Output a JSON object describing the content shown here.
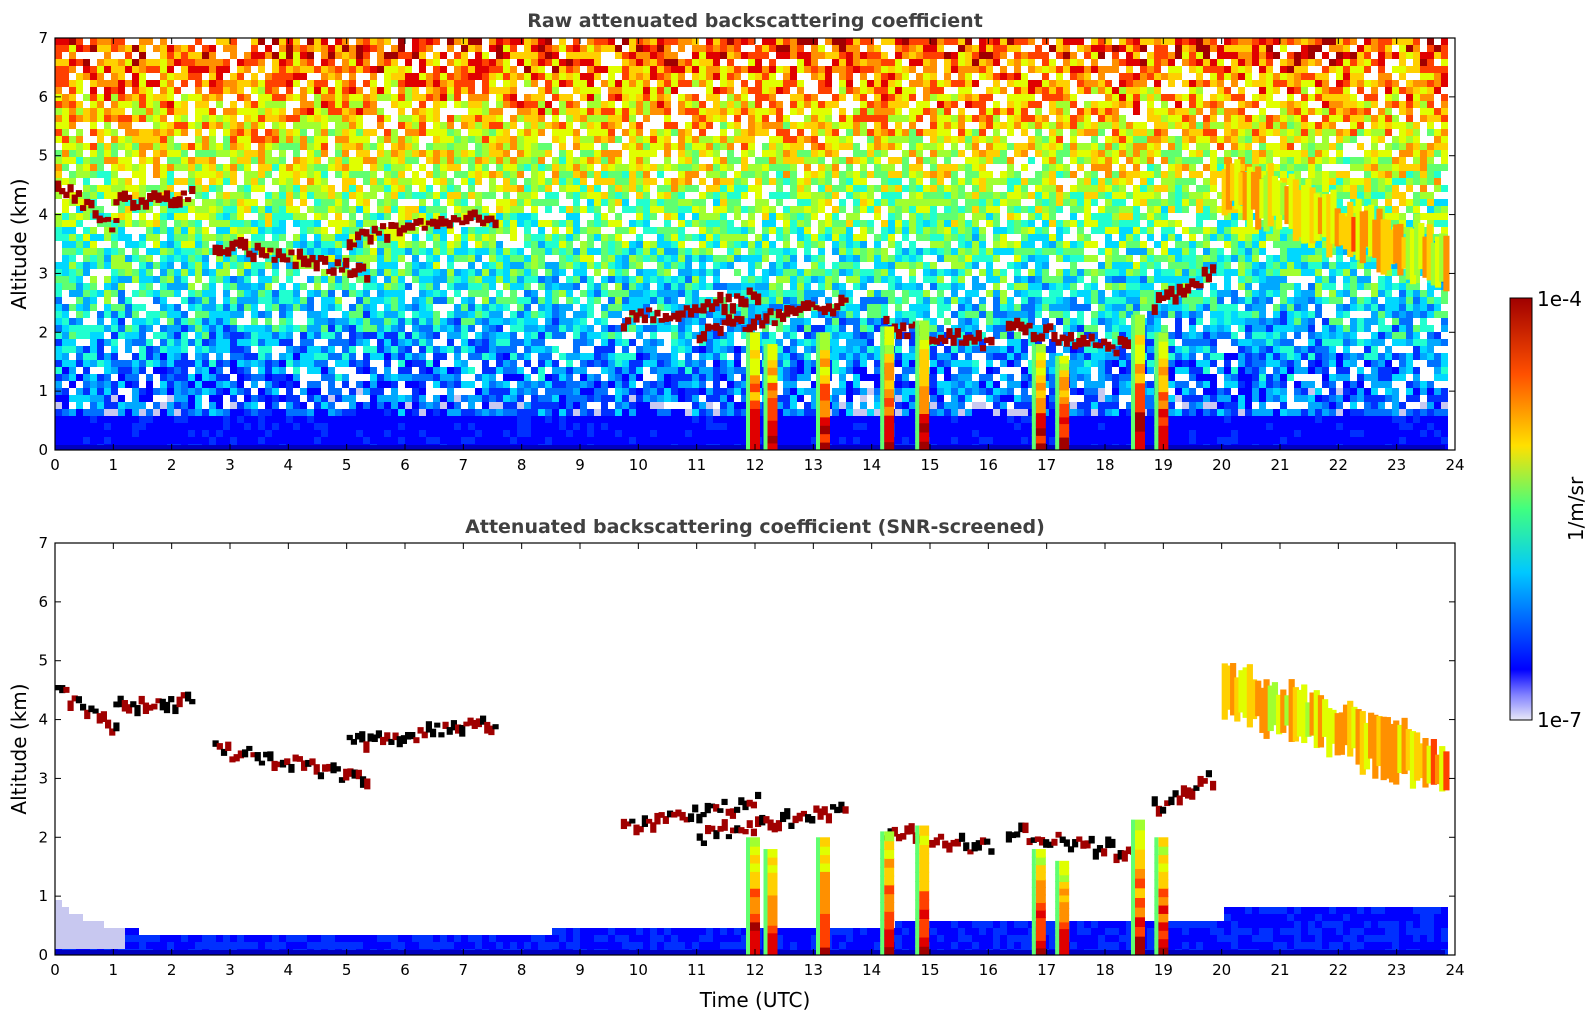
{
  "chart_data": [
    {
      "type": "heatmap",
      "title": "Raw attenuated backscattering coefficient",
      "xlabel": "",
      "ylabel": "Altitude (km)",
      "xlim": [
        0,
        24
      ],
      "ylim": [
        0,
        7
      ],
      "xticks": [
        "0",
        "1",
        "2",
        "3",
        "4",
        "5",
        "6",
        "7",
        "8",
        "9",
        "10",
        "11",
        "12",
        "13",
        "14",
        "15",
        "16",
        "17",
        "18",
        "19",
        "20",
        "21",
        "22",
        "23",
        "24"
      ],
      "yticks": [
        "0",
        "1",
        "2",
        "3",
        "4",
        "5",
        "6",
        "7"
      ],
      "screened": false
    },
    {
      "type": "heatmap",
      "title": "Attenuated backscattering coefficient (SNR-screened)",
      "xlabel": "Time (UTC)",
      "ylabel": "Altitude (km)",
      "xlim": [
        0,
        24
      ],
      "ylim": [
        0,
        7
      ],
      "xticks": [
        "0",
        "1",
        "2",
        "3",
        "4",
        "5",
        "6",
        "7",
        "8",
        "9",
        "10",
        "11",
        "12",
        "13",
        "14",
        "15",
        "16",
        "17",
        "18",
        "19",
        "20",
        "21",
        "22",
        "23",
        "24"
      ],
      "yticks": [
        "0",
        "1",
        "2",
        "3",
        "4",
        "5",
        "6",
        "7"
      ],
      "screened": true
    }
  ],
  "colorbar": {
    "label": "1/m/sr",
    "max_label": "1e-4",
    "min_label": "1e-7",
    "colors": [
      "#e8e8f8",
      "#0000ff",
      "#00c8ff",
      "#40ff80",
      "#ffe000",
      "#ff5000",
      "#a00000"
    ]
  },
  "features": {
    "cloud_layers": [
      {
        "t": [
          0.0,
          1.0
        ],
        "z": [
          4.5,
          3.8
        ]
      },
      {
        "t": [
          1.0,
          2.3
        ],
        "z": [
          4.2,
          4.3
        ]
      },
      {
        "t": [
          2.7,
          5.3
        ],
        "z": [
          3.5,
          3.0
        ]
      },
      {
        "t": [
          5.0,
          7.5
        ],
        "z": [
          3.6,
          3.95
        ]
      },
      {
        "t": [
          9.7,
          12.0
        ],
        "z": [
          2.2,
          2.6
        ]
      },
      {
        "t": [
          11.0,
          13.5
        ],
        "z": [
          2.0,
          2.5
        ]
      },
      {
        "t": [
          14.2,
          16.0
        ],
        "z": [
          2.1,
          1.8
        ]
      },
      {
        "t": [
          16.3,
          18.5
        ],
        "z": [
          2.1,
          1.7
        ]
      },
      {
        "t": [
          18.8,
          19.8
        ],
        "z": [
          2.5,
          3.0
        ]
      },
      {
        "t": [
          20.0,
          23.8
        ],
        "z": [
          4.5,
          3.2
        ]
      }
    ],
    "precipitation_shafts": [
      {
        "t": 12.0,
        "z_top": 2.0
      },
      {
        "t": 12.3,
        "z_top": 1.8
      },
      {
        "t": 13.2,
        "z_top": 2.0
      },
      {
        "t": 14.3,
        "z_top": 2.1
      },
      {
        "t": 14.9,
        "z_top": 2.2
      },
      {
        "t": 16.9,
        "z_top": 1.8
      },
      {
        "t": 17.3,
        "z_top": 1.6
      },
      {
        "t": 18.6,
        "z_top": 2.3
      },
      {
        "t": 19.0,
        "z_top": 2.0
      }
    ]
  }
}
